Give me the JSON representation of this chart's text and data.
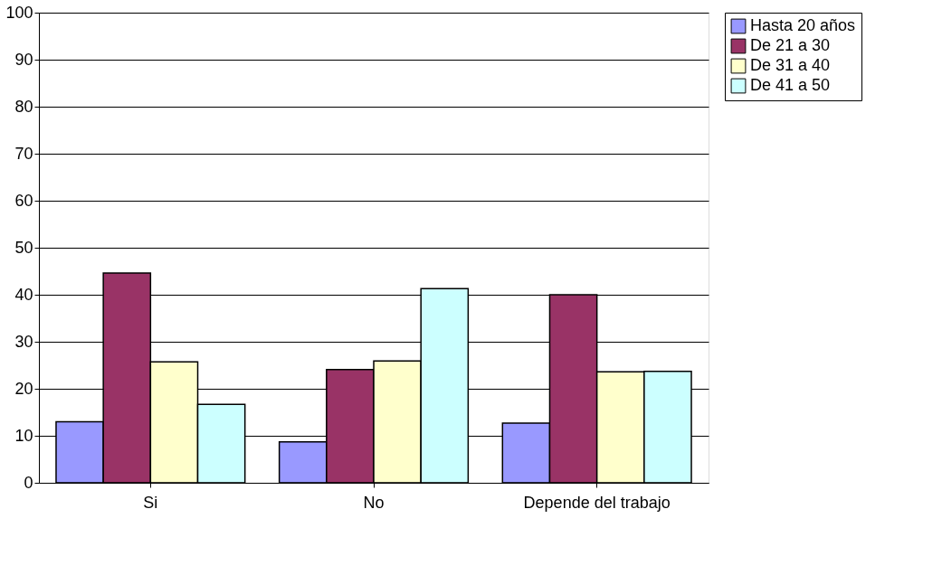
{
  "chart_data": {
    "type": "bar",
    "categories": [
      "Si",
      "No",
      "Depende del trabajo"
    ],
    "series": [
      {
        "name": "Hasta 20 años",
        "color": "#9999ff",
        "values": [
          13,
          8.7,
          12.7
        ]
      },
      {
        "name": "De 21 a 30",
        "color": "#993366",
        "values": [
          44.6,
          24.1,
          40
        ]
      },
      {
        "name": "De 31 a 40",
        "color": "#ffffcc",
        "values": [
          25.7,
          25.9,
          23.6
        ]
      },
      {
        "name": "De 41 a 50",
        "color": "#ccffff",
        "values": [
          16.7,
          41.3,
          23.7
        ]
      }
    ],
    "ylim": [
      0,
      100
    ],
    "yticks": [
      0,
      10,
      20,
      30,
      40,
      50,
      60,
      70,
      80,
      90,
      100
    ],
    "grid": "y",
    "legend": "right"
  }
}
